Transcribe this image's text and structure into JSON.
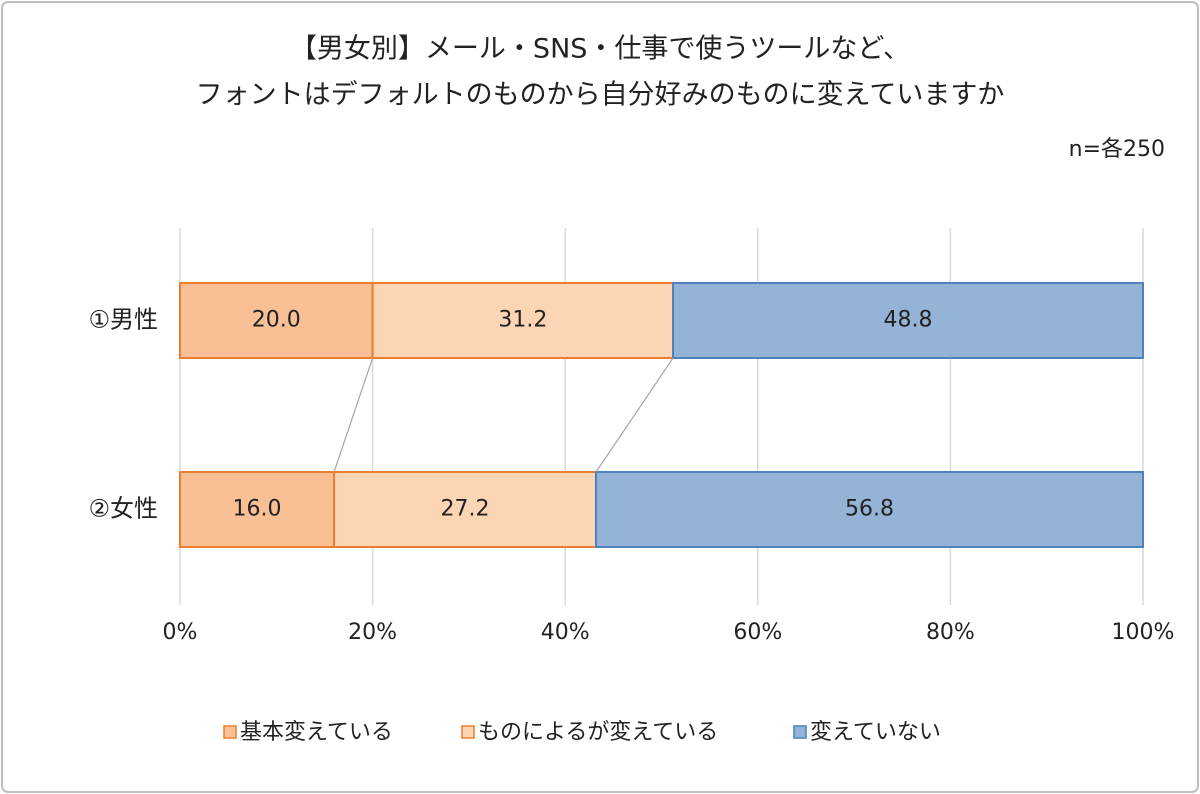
{
  "chart_data": {
    "type": "stacked_barh",
    "title": [
      "【男女別】メール・SNS・仕事で使うツールなど、",
      "フォントはデフォルトのものから自分好みのものに変えていますか"
    ],
    "annotation": "n=各250",
    "categories": [
      "①男性",
      "②女性"
    ],
    "series": [
      {
        "name": "基本変えている",
        "color": "#f8c094",
        "border": "#ed7d31",
        "values": [
          20,
          16
        ],
        "value_labels": [
          "20.0",
          "16.0"
        ]
      },
      {
        "name": "ものによるが変えている",
        "color": "#fcd5b5",
        "border": "#ed7d31",
        "values": [
          31.2,
          27.2
        ],
        "value_labels": [
          "31.2",
          "27.2"
        ]
      },
      {
        "name": "変えていない",
        "color": "#95b3d7",
        "border": "#4f81bd",
        "values": [
          48.8,
          56.8
        ],
        "value_labels": [
          "48.8",
          "56.8"
        ]
      }
    ],
    "xlim": [
      0,
      100
    ],
    "xticks": [
      {
        "value": 0,
        "label": "0%"
      },
      {
        "value": 20,
        "label": "20%"
      },
      {
        "value": 40,
        "label": "40%"
      },
      {
        "value": 60,
        "label": "60%"
      },
      {
        "value": 80,
        "label": "80%"
      },
      {
        "value": 100,
        "label": "100%"
      }
    ],
    "grid": true,
    "legend": "bottom"
  }
}
